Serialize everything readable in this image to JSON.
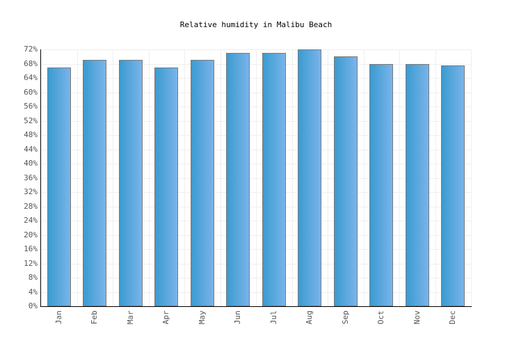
{
  "title": "Relative humidity in Malibu Beach",
  "chart_data": {
    "type": "bar",
    "title": "Relative humidity in Malibu Beach",
    "xlabel": "",
    "ylabel": "",
    "categories": [
      "Jan",
      "Feb",
      "Mar",
      "Apr",
      "May",
      "Jun",
      "Jul",
      "Aug",
      "Sep",
      "Oct",
      "Nov",
      "Dec"
    ],
    "values": [
      67,
      69,
      69,
      67,
      69,
      71,
      71,
      72,
      70,
      68,
      68,
      67.5
    ],
    "unit": "%",
    "ylim": [
      0,
      72
    ],
    "yticks": [
      "0%",
      "4%",
      "8%",
      "12%",
      "16%",
      "20%",
      "24%",
      "28%",
      "32%",
      "36%",
      "40%",
      "44%",
      "48%",
      "52%",
      "56%",
      "60%",
      "64%",
      "68%",
      "72%"
    ],
    "grid": true,
    "legend": null,
    "bar_color_start": "#3a9bd0",
    "bar_color_end": "#7ab4ea",
    "bar_border": "#7a7a7a"
  }
}
